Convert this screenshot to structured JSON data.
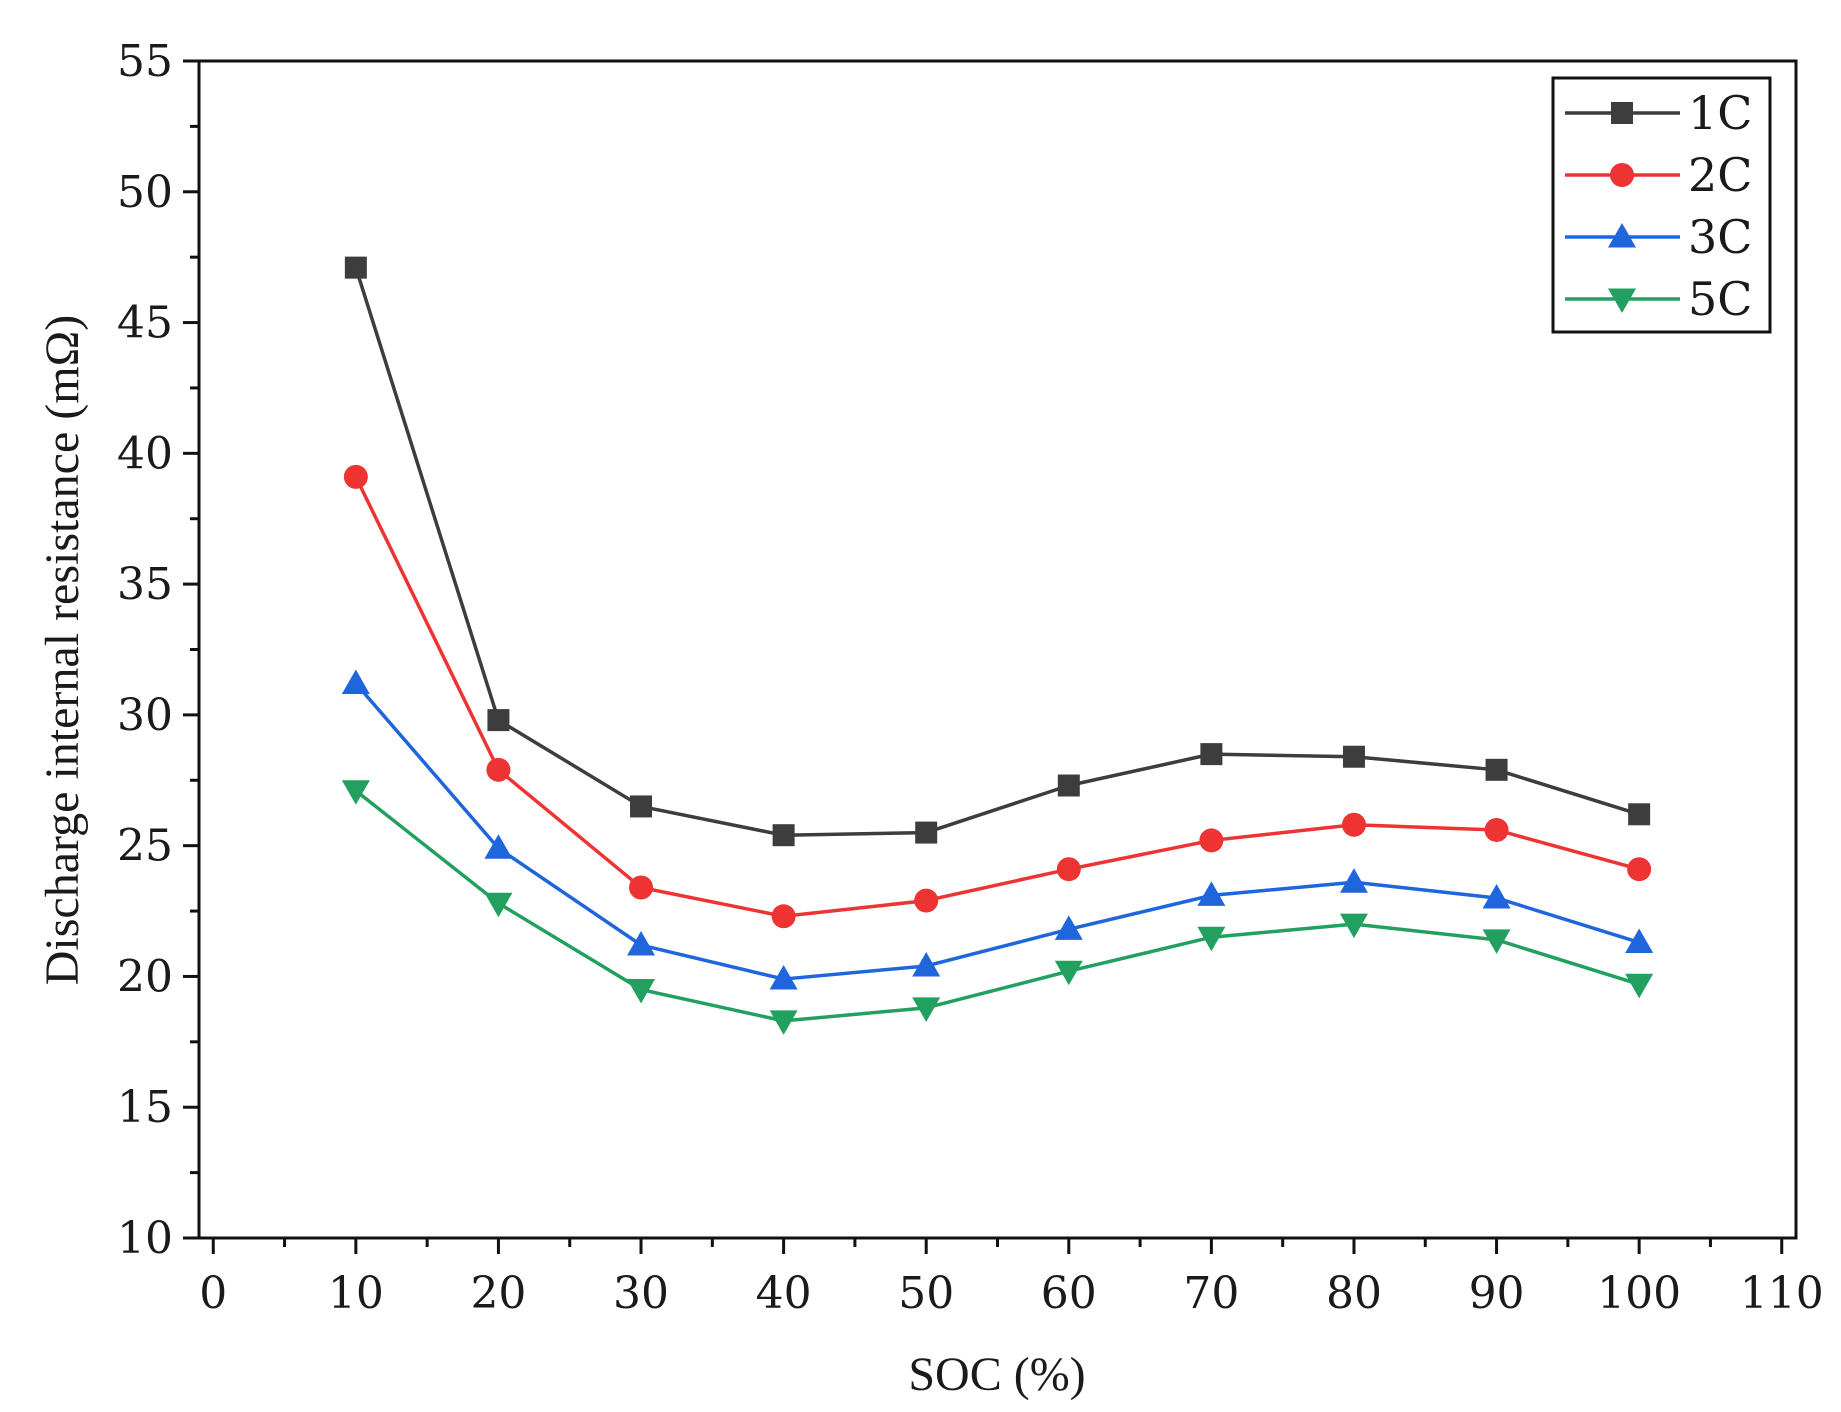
{
  "chart_data": {
    "type": "line",
    "title": "",
    "xlabel": "SOC (%)",
    "ylabel": "Discharge internal resistance (mΩ)",
    "xlim": [
      -1,
      111
    ],
    "ylim": [
      10,
      55
    ],
    "xticks": [
      0,
      10,
      20,
      30,
      40,
      50,
      60,
      70,
      80,
      90,
      100,
      110
    ],
    "xtick_labels": [
      "0",
      "10",
      "20",
      "30",
      "40",
      "50",
      "60",
      "70",
      "80",
      "90",
      "100",
      "110"
    ],
    "yticks": [
      10,
      15,
      20,
      25,
      30,
      35,
      40,
      45,
      50,
      55
    ],
    "ytick_labels": [
      "10",
      "15",
      "20",
      "25",
      "30",
      "35",
      "40",
      "45",
      "50",
      "55"
    ],
    "grid": false,
    "legend_position": "top-right",
    "x": [
      10,
      20,
      30,
      40,
      50,
      60,
      70,
      80,
      90,
      100
    ],
    "series": [
      {
        "name": "1C",
        "color": "#3d3d3d",
        "marker": "square",
        "values": [
          47.1,
          29.8,
          26.5,
          25.4,
          25.5,
          27.3,
          28.5,
          28.4,
          27.9,
          26.2
        ]
      },
      {
        "name": "2C",
        "color": "#ee3333",
        "marker": "circle",
        "values": [
          39.1,
          27.9,
          23.4,
          22.3,
          22.9,
          24.1,
          25.2,
          25.8,
          25.6,
          24.1
        ]
      },
      {
        "name": "3C",
        "color": "#1f66dd",
        "marker": "triangle-up",
        "values": [
          31.2,
          24.9,
          21.2,
          19.9,
          20.4,
          21.8,
          23.1,
          23.6,
          23.0,
          21.3
        ]
      },
      {
        "name": "5C",
        "color": "#22a060",
        "marker": "triangle-down",
        "values": [
          27.1,
          22.8,
          19.5,
          18.3,
          18.8,
          20.2,
          21.5,
          22.0,
          21.4,
          19.7
        ]
      }
    ]
  }
}
